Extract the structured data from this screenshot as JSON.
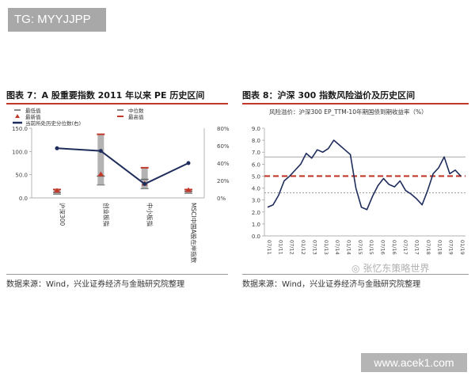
{
  "badge": "TG: MYYJJPP",
  "watermark": "www.acek1.com",
  "wechat_logo": "张忆东策略世界",
  "left_figure": {
    "title": "图表 7：A 股重要指数 2011 年以来 PE 历史区间",
    "source": "数据来源：Wind，兴业证券经济与金融研究院整理"
  },
  "right_figure": {
    "title": "图表 8：沪深 300 指数风险溢价及历史区间",
    "source": "数据来源：Wind，兴业证券经济与金融研究院整理"
  },
  "colors": {
    "navy": "#1f2d5c",
    "red": "#c0392b",
    "bar": "#b3b3b3"
  },
  "chart_data": [
    {
      "type": "bar",
      "legend_position": "top-left",
      "legend": [
        {
          "label": "最低值",
          "marker": "dash-gray"
        },
        {
          "label": "最新值",
          "marker": "triangle-red"
        },
        {
          "label": "当前所处历史分位数(右)",
          "marker": "line-navy"
        },
        {
          "label": "中位数",
          "marker": "dash-gray"
        },
        {
          "label": "最高值",
          "marker": "dash-red"
        }
      ],
      "categories": [
        "沪深300",
        "创业板指",
        "中小板指",
        "MSCI中国A股在岸指数"
      ],
      "ylim": [
        0,
        150
      ],
      "yticks": [
        "0.0",
        "50.0",
        "100.0",
        "150.0"
      ],
      "y2lim": [
        0,
        80
      ],
      "y2ticks": [
        "0%",
        "20%",
        "40%",
        "60%",
        "80%"
      ],
      "min": [
        8,
        28,
        20,
        10
      ],
      "max": [
        18,
        137,
        65,
        18
      ],
      "median": [
        12,
        47,
        40,
        14
      ],
      "latest": [
        15,
        50,
        30,
        16
      ],
      "percentile": [
        57,
        54,
        16,
        40
      ]
    },
    {
      "type": "line",
      "title": "风险溢价：沪深300 EP_TTM-10年期国债到期收益率（%）",
      "ylim": [
        0,
        9
      ],
      "yticks": [
        "0.0",
        "1.0",
        "2.0",
        "3.0",
        "4.0",
        "5.0",
        "6.0",
        "7.0",
        "8.0",
        "9.0"
      ],
      "xticks": [
        "07/11",
        "01/11",
        "07/12",
        "01/12",
        "07/13",
        "01/13",
        "07/14",
        "01/14",
        "07/15",
        "01/15",
        "07/16",
        "01/16",
        "07/17",
        "01/17",
        "07/18",
        "01/18",
        "07/19",
        "01/19"
      ],
      "x": [
        "2011-01",
        "2011-04",
        "2011-07",
        "2011-10",
        "2012-01",
        "2012-04",
        "2012-07",
        "2012-10",
        "2013-01",
        "2013-04",
        "2013-07",
        "2013-10",
        "2014-01",
        "2014-04",
        "2014-07",
        "2014-10",
        "2015-01",
        "2015-04",
        "2015-07",
        "2015-10",
        "2016-01",
        "2016-04",
        "2016-07",
        "2016-10",
        "2017-01",
        "2017-04",
        "2017-07",
        "2017-10",
        "2018-01",
        "2018-04",
        "2018-07",
        "2018-10",
        "2019-01",
        "2019-04",
        "2019-07",
        "2019-10"
      ],
      "values": [
        2.4,
        2.6,
        3.4,
        4.6,
        5.0,
        5.5,
        6.0,
        6.9,
        6.5,
        7.2,
        7.0,
        7.3,
        8.0,
        7.6,
        7.2,
        6.8,
        4.0,
        2.4,
        2.2,
        3.3,
        4.2,
        4.8,
        4.3,
        4.1,
        4.6,
        3.8,
        3.5,
        3.1,
        2.6,
        3.8,
        5.2,
        5.7,
        6.6,
        5.2,
        5.5,
        5.0
      ],
      "reference_lines": [
        {
          "name": "max",
          "value": 6.6,
          "style": "solid-gray"
        },
        {
          "name": "median",
          "value": 5.0,
          "style": "dashed-red"
        },
        {
          "name": "min",
          "value": 3.6,
          "style": "dotted-gray"
        }
      ]
    }
  ]
}
